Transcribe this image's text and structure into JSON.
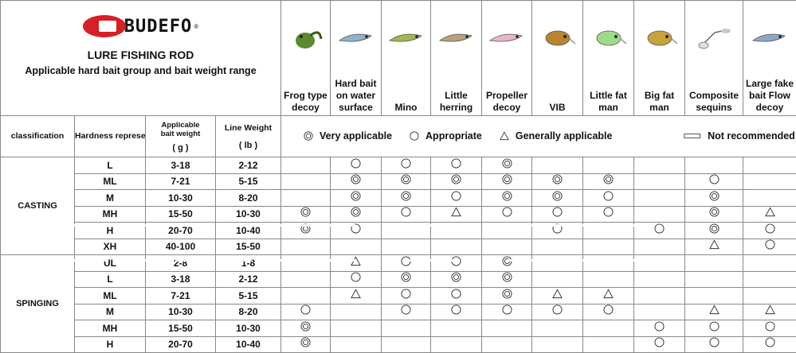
{
  "brand": {
    "logo_text": "BUDEFO",
    "logo_reg": "®",
    "title": "LURE FISHING ROD",
    "subtitle": "Applicable hard bait group and bait weight range"
  },
  "lures": [
    {
      "name": "Frog type decoy",
      "icon": "frog-lure-icon",
      "color": "#5c8a2e"
    },
    {
      "name": "Hard bait on water surface",
      "icon": "surface-bait-icon",
      "color": "#8fb3c9"
    },
    {
      "name": "Mino",
      "icon": "minnow-lure-icon",
      "color": "#9fb84a"
    },
    {
      "name": "Little herring",
      "icon": "herring-lure-icon",
      "color": "#b8a27a"
    },
    {
      "name": "Propeller decoy",
      "icon": "propeller-lure-icon",
      "color": "#e8b7c4"
    },
    {
      "name": "VIB",
      "icon": "vib-lure-icon",
      "color": "#b8852e"
    },
    {
      "name": "Little fat man",
      "icon": "crank-lure-icon",
      "color": "#9fdc8a"
    },
    {
      "name": "Big fat man",
      "icon": "big-crank-lure-icon",
      "color": "#c9a23a"
    },
    {
      "name": "Composite sequins",
      "icon": "spinnerbait-icon",
      "color": "#a9a9a9"
    },
    {
      "name": "Large fake bait Flow decoy",
      "icon": "swimbait-icon",
      "color": "#8fa6c8"
    }
  ],
  "headers": {
    "classification": "classification",
    "hardness": "Hardness representation",
    "bait_weight": "Applicable bait weight",
    "bait_unit": "( g )",
    "line_weight": "Line Weight",
    "line_unit": "( lb )"
  },
  "legend": [
    {
      "symbol": "double",
      "label": "Very applicable"
    },
    {
      "symbol": "circle",
      "label": "Appropriate"
    },
    {
      "symbol": "triangle",
      "label": "Generally applicable"
    },
    {
      "symbol": "rect",
      "label": "Not recommended"
    }
  ],
  "groups": [
    {
      "name": "CASTING",
      "rows": [
        {
          "hardness": "L",
          "bait": "3-18",
          "line": "2-12",
          "marks": [
            "",
            "circle",
            "circle",
            "circle",
            "double",
            "",
            "",
            "",
            "",
            ""
          ]
        },
        {
          "hardness": "ML",
          "bait": "7-21",
          "line": "5-15",
          "marks": [
            "",
            "double",
            "double",
            "double",
            "double",
            "double",
            "double",
            "",
            "circle",
            ""
          ]
        },
        {
          "hardness": "M",
          "bait": "10-30",
          "line": "8-20",
          "marks": [
            "",
            "double",
            "double",
            "circle",
            "double",
            "double",
            "circle",
            "",
            "double",
            ""
          ]
        },
        {
          "hardness": "MH",
          "bait": "15-50",
          "line": "10-30",
          "marks": [
            "double",
            "double",
            "circle",
            "triangle",
            "circle",
            "circle",
            "circle",
            "",
            "double",
            "triangle"
          ]
        },
        {
          "hardness": "H",
          "bait": "20-70",
          "line": "10-40",
          "marks": [
            "double",
            "circle",
            "",
            "",
            "",
            "circle",
            "",
            "circle",
            "double",
            "circle"
          ]
        },
        {
          "hardness": "XH",
          "bait": "40-100",
          "line": "15-50",
          "marks": [
            "",
            "",
            "",
            "",
            "",
            "",
            "",
            "",
            "triangle",
            "circle"
          ]
        }
      ]
    },
    {
      "name": "SPINGING",
      "rows": [
        {
          "hardness": "UL",
          "bait": "2-8",
          "line": "1-8",
          "marks": [
            "",
            "triangle",
            "circle",
            "circle",
            "double",
            "",
            "",
            "",
            "",
            ""
          ]
        },
        {
          "hardness": "L",
          "bait": "3-18",
          "line": "2-12",
          "marks": [
            "",
            "circle",
            "double",
            "double",
            "double",
            "",
            "",
            "",
            "",
            ""
          ]
        },
        {
          "hardness": "ML",
          "bait": "7-21",
          "line": "5-15",
          "marks": [
            "",
            "triangle",
            "circle",
            "circle",
            "double",
            "triangle",
            "triangle",
            "",
            "",
            ""
          ]
        },
        {
          "hardness": "M",
          "bait": "10-30",
          "line": "8-20",
          "marks": [
            "circle",
            "",
            "circle",
            "circle",
            "circle",
            "circle",
            "circle",
            "",
            "triangle",
            "triangle"
          ]
        },
        {
          "hardness": "MH",
          "bait": "15-50",
          "line": "10-30",
          "marks": [
            "double",
            "",
            "",
            "",
            "",
            "",
            "",
            "circle",
            "circle",
            "circle"
          ]
        },
        {
          "hardness": "H",
          "bait": "20-70",
          "line": "10-40",
          "marks": [
            "double",
            "",
            "",
            "",
            "",
            "",
            "",
            "circle",
            "circle",
            "circle"
          ]
        }
      ]
    }
  ]
}
